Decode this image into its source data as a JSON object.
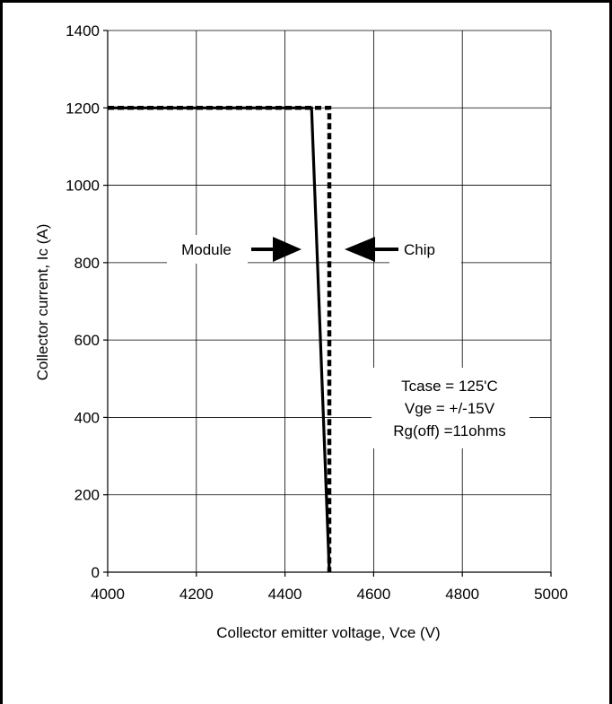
{
  "chart_data": {
    "type": "line",
    "title": "",
    "xlabel": "Collector emitter voltage, Vce (V)",
    "ylabel": "Collector current, Ic (A)",
    "xlim": [
      4000,
      5000
    ],
    "ylim": [
      0,
      1400
    ],
    "x_ticks": [
      4000,
      4200,
      4400,
      4600,
      4800,
      5000
    ],
    "y_ticks": [
      0,
      200,
      400,
      600,
      800,
      1000,
      1200,
      1400
    ],
    "grid": true,
    "legend": "none",
    "series": [
      {
        "name": "Module",
        "style": "solid",
        "color": "#000000",
        "x": [
          4000,
          4460,
          4500
        ],
        "y": [
          1200,
          1200,
          0
        ]
      },
      {
        "name": "Chip",
        "style": "dashed",
        "color": "#000000",
        "x": [
          4000,
          4500,
          4500
        ],
        "y": [
          1200,
          1200,
          0
        ]
      }
    ],
    "annotations": {
      "module_label": "Module",
      "chip_label": "Chip",
      "conditions": [
        "Tcase = 125'C",
        "Vge = +/-15V",
        "Rg(off) =11ohms"
      ]
    }
  }
}
